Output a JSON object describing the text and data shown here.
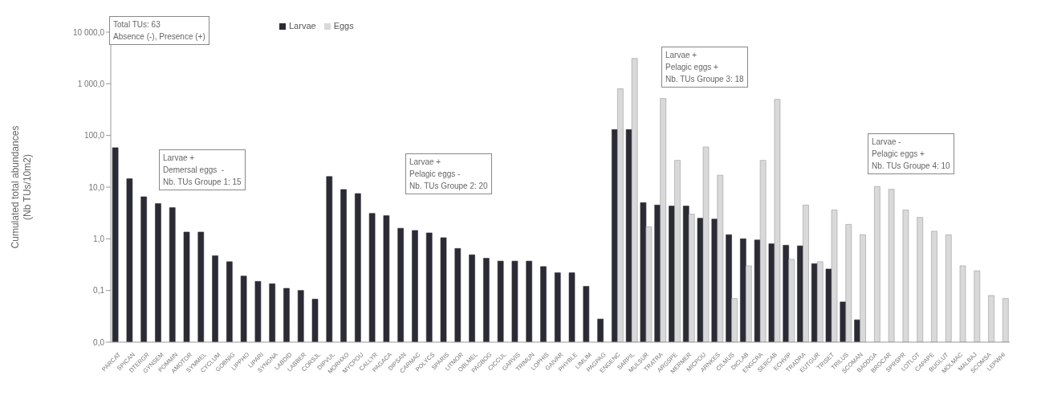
{
  "chart_data": {
    "type": "bar",
    "ylabel": "Cumulated total abundances\n(Nb TUs/10m2)",
    "categories": [
      "PARCAT",
      "SPICAN",
      "DTERGR",
      "GYNSEM",
      "POMMIN",
      "AMOTOR",
      "SYMMEL",
      "CYCLUM",
      "GOBNIG",
      "LIPPHO",
      "LIPARI",
      "SYNGNA",
      "LABDID",
      "LABBER",
      "CORSJL",
      "DIPVUL",
      "MORHXO",
      "MYCPOU",
      "CALLYR",
      "PAGACA",
      "DIPSAN",
      "CARMAC",
      "POLYCS",
      "SPARIS",
      "LITMOR",
      "OBLMEL",
      "PAGBOG",
      "CICCUL",
      "GARVIS",
      "TRIMUN",
      "LOPHIS",
      "GAIVAR",
      "PHYBLE",
      "LIMLIM",
      "PAGPAG",
      "ENGENC",
      "SARPIL",
      "MULSUR",
      "TRATRA",
      "ARGSPE",
      "MERMER",
      "MICPOU",
      "ARNKES",
      "CILMUS",
      "DICLAB",
      "ENGCRA",
      "SERCAB",
      "ECHVIP",
      "TRADRA",
      "EUTGUR",
      "TRISET",
      "TRILUS",
      "SCOMAN",
      "BADDGA",
      "BROCAR",
      "SPRSPR",
      "LOTLOT",
      "CAPAPE",
      "BUGLUT",
      "MOLMAC",
      "MALBAJ",
      "SCOMSA",
      "LEPWHI"
    ],
    "series": [
      {
        "name": "Larvae",
        "color": "#2b2b36",
        "values": [
          58,
          14.5,
          6.5,
          4.8,
          4.0,
          1.35,
          1.35,
          0.47,
          0.36,
          0.19,
          0.15,
          0.135,
          0.11,
          0.1,
          0.068,
          16,
          9,
          7.5,
          3.1,
          2.8,
          1.6,
          1.45,
          1.3,
          1.05,
          0.65,
          0.49,
          0.42,
          0.37,
          0.37,
          0.37,
          0.29,
          0.22,
          0.22,
          0.12,
          0.028,
          130,
          130,
          5.0,
          4.5,
          4.3,
          4.3,
          2.5,
          2.4,
          1.2,
          1.0,
          0.95,
          0.8,
          0.75,
          0.73,
          0.33,
          0.26,
          0.06,
          0.027,
          null,
          null,
          null,
          null,
          null,
          null,
          null,
          null,
          null,
          null
        ]
      },
      {
        "name": "Eggs",
        "color": "#d9d9d9",
        "values": [
          null,
          null,
          null,
          null,
          null,
          null,
          null,
          null,
          null,
          null,
          null,
          null,
          null,
          null,
          null,
          null,
          null,
          null,
          null,
          null,
          null,
          null,
          null,
          null,
          null,
          null,
          null,
          null,
          null,
          null,
          null,
          null,
          null,
          null,
          null,
          800,
          3100,
          1.7,
          520,
          33,
          3.0,
          60,
          17,
          0.07,
          0.3,
          33,
          500,
          0.4,
          4.5,
          0.36,
          3.6,
          1.9,
          1.2,
          10.3,
          9.1,
          3.6,
          2.6,
          1.4,
          1.2,
          0.3,
          0.24,
          0.08,
          0.07
        ]
      }
    ],
    "log": true,
    "ylim": [
      0.01,
      10000
    ],
    "yticks": [
      {
        "value": 0.01,
        "label": "0,0"
      },
      {
        "value": 0.1,
        "label": "0,1"
      },
      {
        "value": 1,
        "label": "1,0"
      },
      {
        "value": 10,
        "label": "10,0"
      },
      {
        "value": 100,
        "label": "100,0"
      },
      {
        "value": 1000,
        "label": "1 000,0"
      },
      {
        "value": 10000,
        "label": "10 000,0"
      }
    ],
    "legend": "top left",
    "grid": false,
    "annotations": [
      "Total TUs: 63\nAbsence (-), Presence (+)",
      "Larvae +\nDemersal eggs  -\nNb. TUs Groupe 1: 15",
      "Larvae +\nPelagic eggs -\nNb. TUs Groupe 2: 20",
      "Larvae +\nPelagic eggs +\nNb. TUs Groupe 3: 18",
      "Larvae -\nPelagic eggs +\nNb. TUs Groupe 4: 10"
    ]
  }
}
